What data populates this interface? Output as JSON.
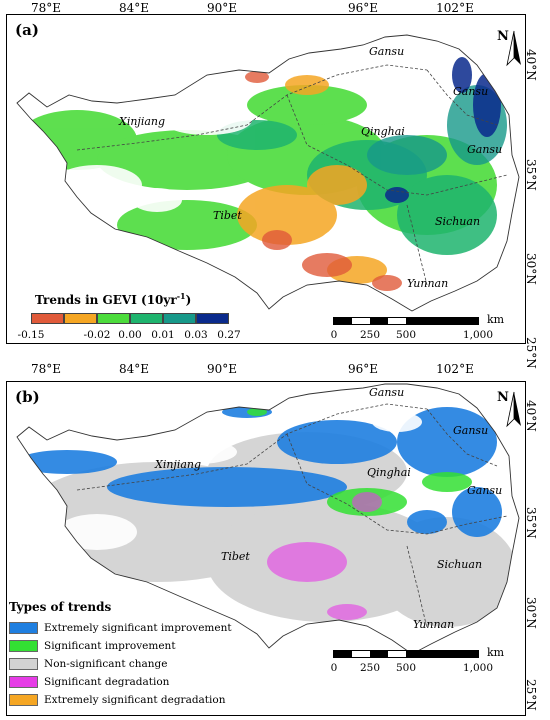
{
  "lon_labels": [
    "78°E",
    "84°E",
    "90°E",
    "96°E",
    "102°E"
  ],
  "lat_labels_a": [
    "40°N",
    "35°N",
    "30°N",
    "25°N"
  ],
  "lat_labels_b": [
    "40°N",
    "35°N",
    "30°N",
    "25°N"
  ],
  "panel_a": {
    "label": "(a)",
    "provinces": {
      "gansu1": "Gansu",
      "gansu2": "Gansu",
      "gansu3": "Gansu",
      "xinjiang": "Xinjiang",
      "qinghai": "Qinghai",
      "tibet": "Tibet",
      "sichuan": "Sichuan",
      "yunnan": "Yunnan"
    },
    "legend": {
      "title_main": "Trends in GEVI (10yr",
      "title_sup": "-1",
      "title_end": ")",
      "colors": [
        "#e05a3a",
        "#f5a623",
        "#4cdc3c",
        "#1eb46e",
        "#17998a",
        "#0a2a8c"
      ],
      "ticks": [
        "-0.15",
        "-0.02",
        "0.00",
        "0.01",
        "0.03",
        "0.27"
      ]
    },
    "scale": {
      "ticks": [
        "0",
        "250",
        "500",
        "1,000"
      ],
      "unit": "km"
    },
    "north": "N"
  },
  "panel_b": {
    "label": "(b)",
    "provinces": {
      "gansu1": "Gansu",
      "gansu2": "Gansu",
      "gansu3": "Gansu",
      "xinjiang": "Xinjiang",
      "qinghai": "Qinghai",
      "tibet": "Tibet",
      "sichuan": "Sichuan",
      "yunnan": "Yunnan"
    },
    "legend": {
      "title": "Types of trends",
      "items": [
        {
          "label": "Extremely significant improvement",
          "color": "#1f7fe0"
        },
        {
          "label": "Significant improvement",
          "color": "#33e033"
        },
        {
          "label": "Non-significant change",
          "color": "#d3d3d3"
        },
        {
          "label": "Significant degradation",
          "color": "#e63ce6"
        },
        {
          "label": "Extremely significant degradation",
          "color": "#f5a623"
        }
      ]
    },
    "scale": {
      "ticks": [
        "0",
        "250",
        "500",
        "1,000"
      ],
      "unit": "km"
    },
    "north": "N"
  }
}
